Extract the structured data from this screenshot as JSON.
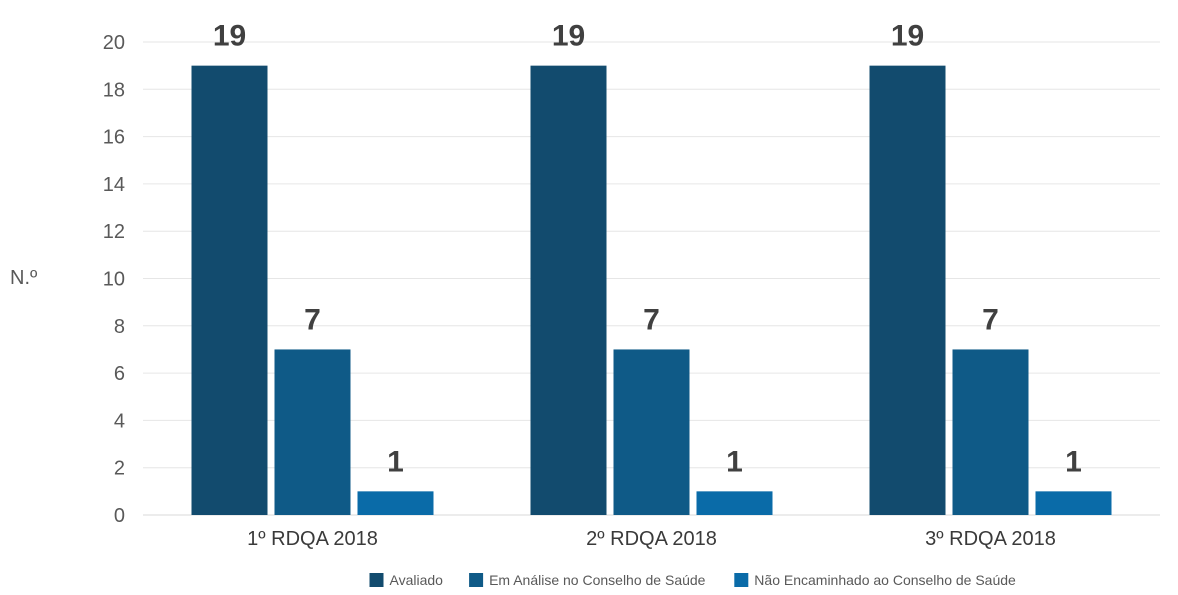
{
  "chart_data": {
    "type": "bar",
    "title": "",
    "xlabel": "",
    "ylabel": "N.º",
    "ylim": [
      0,
      20
    ],
    "yticks": [
      0,
      2,
      4,
      6,
      8,
      10,
      12,
      14,
      16,
      18,
      20
    ],
    "grid": true,
    "legend_position": "bottom",
    "data_labels": true,
    "categories": [
      "1º RDQA 2018",
      "2º RDQA 2018",
      "3º RDQA 2018"
    ],
    "series": [
      {
        "name": "Avaliado",
        "values": [
          19,
          19,
          19
        ],
        "color": "#124b6e"
      },
      {
        "name": "Em Análise no Conselho de Saúde",
        "values": [
          7,
          7,
          7
        ],
        "color": "#0f5a87"
      },
      {
        "name": "Não Encaminhado ao Conselho de Saúde",
        "values": [
          1,
          1,
          1
        ],
        "color": "#0a6ba8"
      }
    ]
  }
}
